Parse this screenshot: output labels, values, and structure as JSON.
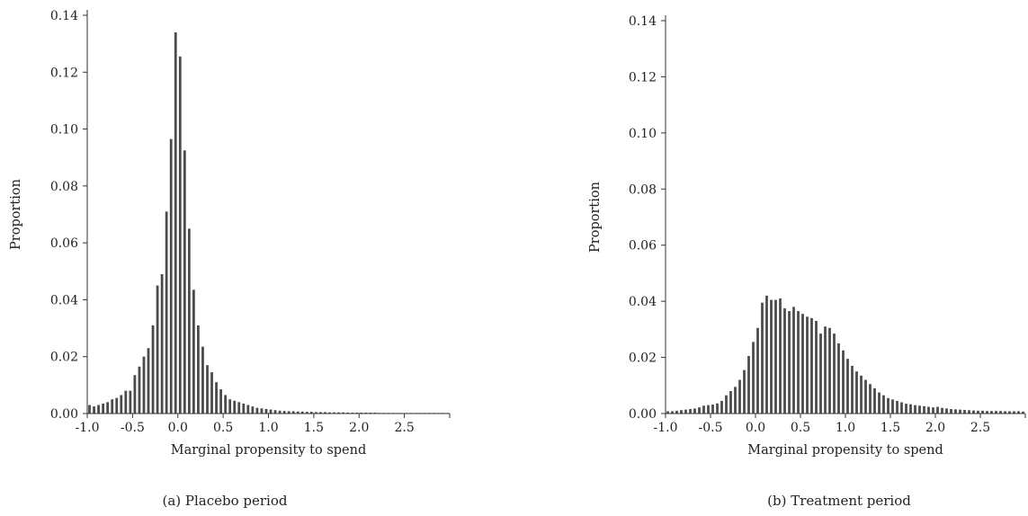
{
  "chart_data": [
    {
      "type": "bar",
      "caption": "(a) Placebo period",
      "xlabel": "Marginal propensity to spend",
      "ylabel": "Proportion",
      "xlim": [
        -1.0,
        3.0
      ],
      "ylim": [
        0,
        0.14
      ],
      "xticks": [
        "-1.0",
        "-0.5",
        "0.0",
        "0.5",
        "1.0",
        "1.5",
        "2.0",
        "2.5"
      ],
      "xtick_values": [
        -1.0,
        -0.5,
        0.0,
        0.5,
        1.0,
        1.5,
        2.0,
        2.5
      ],
      "yticks": [
        "0.00",
        "0.02",
        "0.04",
        "0.06",
        "0.08",
        "0.10",
        "0.12",
        "0.14"
      ],
      "ytick_values": [
        0.0,
        0.02,
        0.04,
        0.06,
        0.08,
        0.1,
        0.12,
        0.14
      ],
      "bin_width": 0.05,
      "x": [
        -0.975,
        -0.925,
        -0.875,
        -0.825,
        -0.775,
        -0.725,
        -0.675,
        -0.625,
        -0.575,
        -0.525,
        -0.475,
        -0.425,
        -0.375,
        -0.325,
        -0.275,
        -0.225,
        -0.175,
        -0.125,
        -0.075,
        -0.025,
        0.025,
        0.075,
        0.125,
        0.175,
        0.225,
        0.275,
        0.325,
        0.375,
        0.425,
        0.475,
        0.525,
        0.575,
        0.625,
        0.675,
        0.725,
        0.775,
        0.825,
        0.875,
        0.925,
        0.975,
        1.025,
        1.075,
        1.125,
        1.175,
        1.225,
        1.275,
        1.325,
        1.375,
        1.425,
        1.475,
        1.525,
        1.575,
        1.625,
        1.675,
        1.725,
        1.775,
        1.825,
        1.875,
        1.925,
        1.975,
        2.025,
        2.075,
        2.125,
        2.175,
        2.225,
        2.275,
        2.325,
        2.375,
        2.425,
        2.475,
        2.525,
        2.575,
        2.625,
        2.675,
        2.725,
        2.775,
        2.825,
        2.875,
        2.925,
        2.975
      ],
      "values": [
        0.003,
        0.0025,
        0.003,
        0.0035,
        0.004,
        0.005,
        0.0055,
        0.0065,
        0.008,
        0.008,
        0.0135,
        0.0165,
        0.02,
        0.023,
        0.031,
        0.045,
        0.049,
        0.071,
        0.0965,
        0.134,
        0.1255,
        0.0925,
        0.065,
        0.0435,
        0.031,
        0.0235,
        0.017,
        0.0145,
        0.011,
        0.0085,
        0.0065,
        0.005,
        0.0045,
        0.004,
        0.0035,
        0.003,
        0.0025,
        0.002,
        0.0018,
        0.0016,
        0.0014,
        0.0012,
        0.001,
        0.0009,
        0.0008,
        0.0008,
        0.0007,
        0.0007,
        0.0006,
        0.0006,
        0.0005,
        0.0005,
        0.0005,
        0.0004,
        0.0004,
        0.0004,
        0.0004,
        0.0003,
        0.0003,
        0.0003,
        0.0003,
        0.0003,
        0.0003,
        0.0003,
        0.0002,
        0.0002,
        0.0002,
        0.0002,
        0.0002,
        0.0002,
        0.0002,
        0.0002,
        0.0002,
        0.0002,
        0.0002,
        0.0002,
        0.0002,
        0.0002,
        0.0002,
        0.0002
      ]
    },
    {
      "type": "bar",
      "caption": "(b) Treatment period",
      "xlabel": "Marginal propensity to spend",
      "ylabel": "Proportion",
      "xlim": [
        -1.0,
        3.0
      ],
      "ylim": [
        0,
        0.14
      ],
      "xticks": [
        "-1.0",
        "-0.5",
        "0.0",
        "0.5",
        "1.0",
        "1.5",
        "2.0",
        "2.5"
      ],
      "xtick_values": [
        -1.0,
        -0.5,
        0.0,
        0.5,
        1.0,
        1.5,
        2.0,
        2.5
      ],
      "yticks": [
        "0.00",
        "0.02",
        "0.04",
        "0.06",
        "0.08",
        "0.10",
        "0.12",
        "0.14"
      ],
      "ytick_values": [
        0.0,
        0.02,
        0.04,
        0.06,
        0.08,
        0.1,
        0.12,
        0.14
      ],
      "bin_width": 0.05,
      "x": [
        -0.975,
        -0.925,
        -0.875,
        -0.825,
        -0.775,
        -0.725,
        -0.675,
        -0.625,
        -0.575,
        -0.525,
        -0.475,
        -0.425,
        -0.375,
        -0.325,
        -0.275,
        -0.225,
        -0.175,
        -0.125,
        -0.075,
        -0.025,
        0.025,
        0.075,
        0.125,
        0.175,
        0.225,
        0.275,
        0.325,
        0.375,
        0.425,
        0.475,
        0.525,
        0.575,
        0.625,
        0.675,
        0.725,
        0.775,
        0.825,
        0.875,
        0.925,
        0.975,
        1.025,
        1.075,
        1.125,
        1.175,
        1.225,
        1.275,
        1.325,
        1.375,
        1.425,
        1.475,
        1.525,
        1.575,
        1.625,
        1.675,
        1.725,
        1.775,
        1.825,
        1.875,
        1.925,
        1.975,
        2.025,
        2.075,
        2.125,
        2.175,
        2.225,
        2.275,
        2.325,
        2.375,
        2.425,
        2.475,
        2.525,
        2.575,
        2.625,
        2.675,
        2.725,
        2.775,
        2.825,
        2.875,
        2.925,
        2.975
      ],
      "values": [
        0.0008,
        0.0008,
        0.001,
        0.0012,
        0.0014,
        0.0016,
        0.0018,
        0.0022,
        0.0028,
        0.003,
        0.0032,
        0.0036,
        0.0045,
        0.0065,
        0.008,
        0.0095,
        0.012,
        0.0155,
        0.0205,
        0.0255,
        0.0305,
        0.0395,
        0.042,
        0.0405,
        0.0405,
        0.041,
        0.0375,
        0.0365,
        0.038,
        0.0365,
        0.0355,
        0.0345,
        0.034,
        0.033,
        0.0285,
        0.031,
        0.0305,
        0.0285,
        0.025,
        0.0225,
        0.0195,
        0.017,
        0.015,
        0.0135,
        0.012,
        0.0105,
        0.009,
        0.0075,
        0.0065,
        0.0055,
        0.005,
        0.0045,
        0.004,
        0.0035,
        0.0033,
        0.003,
        0.0028,
        0.0026,
        0.0024,
        0.0022,
        0.0024,
        0.002,
        0.0018,
        0.0016,
        0.0015,
        0.0014,
        0.0013,
        0.0012,
        0.0011,
        0.001,
        0.001,
        0.0009,
        0.0009,
        0.0009,
        0.0009,
        0.0008,
        0.0008,
        0.0008,
        0.0008,
        0.0007
      ]
    }
  ]
}
